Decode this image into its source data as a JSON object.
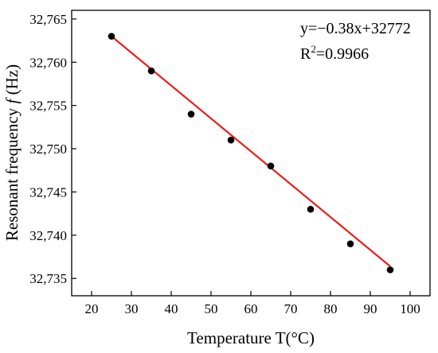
{
  "chart_data": {
    "type": "scatter",
    "title": "",
    "xlabel": "Temperature T(°C)",
    "ylabel_main": "Resonant frequency ",
    "ylabel_symbol": "f",
    "ylabel_unit": " (Hz)",
    "xlim": [
      15,
      105
    ],
    "ylim": [
      32733,
      32766
    ],
    "xticks": [
      20,
      30,
      40,
      50,
      60,
      70,
      80,
      90,
      100
    ],
    "yticks": [
      32735,
      32740,
      32745,
      32750,
      32755,
      32760,
      32765
    ],
    "ytick_labels": [
      "32,735",
      "32,740",
      "32,745",
      "32,750",
      "32,755",
      "32,760",
      "32,765"
    ],
    "grid": false,
    "points": {
      "x": [
        25,
        35,
        45,
        55,
        65,
        75,
        85,
        95
      ],
      "y": [
        32763,
        32759,
        32754,
        32751,
        32748,
        32743,
        32739,
        32736
      ]
    },
    "fit_line": {
      "slope": -0.38,
      "intercept": 32772.5,
      "x_range": [
        25,
        95
      ],
      "color": "#e8201c"
    },
    "point_color": "#000000",
    "annotations": {
      "equation": "y=−0.38x+32772",
      "r2_prefix": "R",
      "r2_exp": "2",
      "r2_value": "=0.9966"
    }
  }
}
